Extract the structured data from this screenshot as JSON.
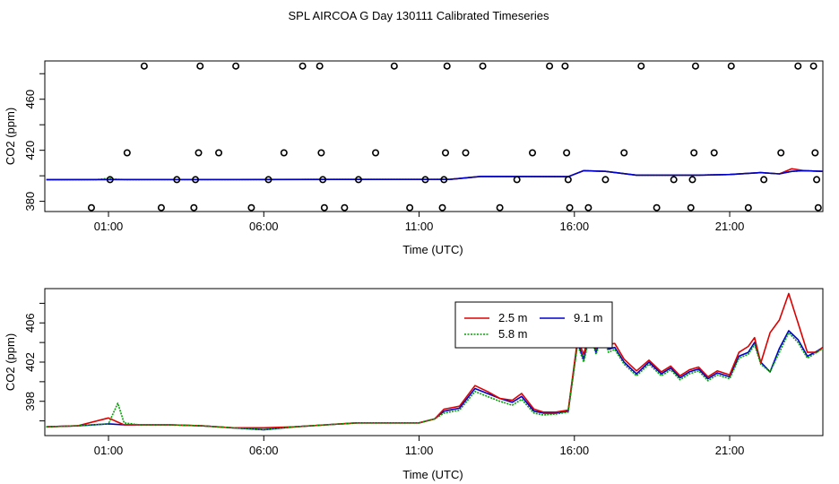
{
  "title": "SPL AIRCOA G  Day 130111  Calibrated Timeseries",
  "colors": {
    "s25": "#dd0000",
    "s58": "#00a000",
    "s91": "#0000cc",
    "pts": "#000000"
  },
  "chart_data": [
    {
      "type": "line+scatter",
      "ylabel": "CO2 (ppm)",
      "xlabel": "Time (UTC)",
      "xlim": [
        -1.05,
        24.0
      ],
      "ylim": [
        372,
        490
      ],
      "xticks": [
        1,
        6,
        11,
        16,
        21
      ],
      "xtick_labels": [
        "01:00",
        "06:00",
        "11:00",
        "16:00",
        "21:00"
      ],
      "yticks": [
        380,
        420,
        460
      ],
      "yticks_minor": [
        400,
        440,
        480
      ],
      "ytick_labels": [
        "380",
        "420",
        "460"
      ],
      "scatter_points": [
        [
          0.45,
          375
        ],
        [
          1.05,
          397
        ],
        [
          1.6,
          418
        ],
        [
          2.15,
          486
        ],
        [
          2.7,
          375
        ],
        [
          3.2,
          397
        ],
        [
          3.75,
          375
        ],
        [
          3.8,
          397
        ],
        [
          3.9,
          418
        ],
        [
          3.95,
          486
        ],
        [
          4.55,
          418
        ],
        [
          5.1,
          486
        ],
        [
          5.6,
          375
        ],
        [
          6.15,
          397
        ],
        [
          6.65,
          418
        ],
        [
          7.25,
          486
        ],
        [
          7.8,
          486
        ],
        [
          7.85,
          418
        ],
        [
          7.9,
          397
        ],
        [
          7.95,
          375
        ],
        [
          8.6,
          375
        ],
        [
          9.05,
          397
        ],
        [
          9.6,
          418
        ],
        [
          10.2,
          486
        ],
        [
          10.7,
          375
        ],
        [
          11.2,
          397
        ],
        [
          11.75,
          375
        ],
        [
          11.8,
          397
        ],
        [
          11.85,
          418
        ],
        [
          11.9,
          486
        ],
        [
          12.5,
          418
        ],
        [
          13.05,
          486
        ],
        [
          13.6,
          375
        ],
        [
          14.15,
          397
        ],
        [
          14.65,
          418
        ],
        [
          15.2,
          486
        ],
        [
          15.7,
          486
        ],
        [
          15.75,
          418
        ],
        [
          15.8,
          397
        ],
        [
          15.85,
          375
        ],
        [
          16.45,
          375
        ],
        [
          17.0,
          397
        ],
        [
          17.6,
          418
        ],
        [
          18.15,
          486
        ],
        [
          18.65,
          375
        ],
        [
          19.2,
          397
        ],
        [
          19.75,
          375
        ],
        [
          19.8,
          397
        ],
        [
          19.85,
          418
        ],
        [
          19.9,
          486
        ],
        [
          20.5,
          418
        ],
        [
          21.05,
          486
        ],
        [
          21.6,
          375
        ],
        [
          22.1,
          397
        ],
        [
          22.65,
          418
        ],
        [
          23.2,
          486
        ],
        [
          23.7,
          486
        ],
        [
          23.75,
          418
        ],
        [
          23.8,
          397
        ],
        [
          23.85,
          375
        ]
      ],
      "series": [
        {
          "name": "2.5 m",
          "x": [
            -1.0,
            12.0,
            13.0,
            15.8,
            16.3,
            17.0,
            18.0,
            19.0,
            20.0,
            21.0,
            22.0,
            22.6,
            23.0,
            23.4,
            24.0
          ],
          "values": [
            397.0,
            397.2,
            399.5,
            399.3,
            404.0,
            403.5,
            400.5,
            400.5,
            400.5,
            401.0,
            402.5,
            401.5,
            405.5,
            404.0,
            403.5
          ]
        },
        {
          "name": "5.8 m",
          "x": [
            -1.0,
            0.6,
            1.0,
            1.3,
            1.6,
            12.0,
            13.0,
            15.8,
            16.3,
            17.0,
            18.0,
            19.0,
            20.0,
            21.0,
            22.0,
            22.6,
            23.0,
            23.4,
            24.0
          ],
          "values": [
            397.0,
            397.0,
            398.0,
            397.2,
            397.0,
            397.2,
            399.5,
            399.3,
            404.0,
            403.5,
            400.5,
            400.5,
            400.5,
            401.0,
            402.5,
            401.5,
            403.5,
            404.0,
            403.5
          ]
        },
        {
          "name": "9.1 m",
          "x": [
            -1.0,
            12.0,
            13.0,
            15.8,
            16.3,
            17.0,
            18.0,
            19.0,
            20.0,
            21.0,
            22.0,
            22.6,
            23.0,
            23.4,
            24.0
          ],
          "values": [
            397.0,
            397.2,
            399.5,
            399.3,
            404.0,
            403.5,
            400.5,
            400.5,
            400.5,
            401.0,
            402.5,
            401.5,
            403.5,
            404.0,
            403.5
          ]
        }
      ]
    },
    {
      "type": "line",
      "ylabel": "CO2 (ppm)",
      "xlabel": "Time (UTC)",
      "xlim": [
        -1.05,
        24.0
      ],
      "ylim": [
        394.5,
        409.5
      ],
      "xticks": [
        1,
        6,
        11,
        16,
        21
      ],
      "xtick_labels": [
        "01:00",
        "06:00",
        "11:00",
        "16:00",
        "21:00"
      ],
      "yticks": [
        398,
        402,
        406
      ],
      "yticks_minor": [
        396,
        400,
        404,
        408
      ],
      "ytick_labels": [
        "398",
        "402",
        "406"
      ],
      "legend": {
        "position": "top-right-center",
        "entries": [
          "2.5 m",
          "9.1 m",
          "5.8 m"
        ]
      },
      "series": [
        {
          "name": "9.1 m",
          "x": [
            -1.0,
            0.0,
            1.0,
            1.5,
            2.0,
            3.0,
            4.0,
            5.0,
            6.0,
            7.0,
            8.0,
            9.0,
            10.0,
            11.0,
            11.5,
            11.8,
            12.3,
            12.8,
            13.2,
            13.6,
            14.0,
            14.3,
            14.7,
            15.0,
            15.4,
            15.8,
            16.1,
            16.3,
            16.5,
            16.7,
            16.9,
            17.1,
            17.3,
            17.6,
            18.0,
            18.4,
            18.8,
            19.1,
            19.4,
            19.7,
            20.0,
            20.3,
            20.6,
            21.0,
            21.3,
            21.6,
            21.8,
            22.0,
            22.3,
            22.6,
            22.9,
            23.2,
            23.5,
            23.8,
            24.0
          ],
          "values": [
            395.4,
            395.5,
            395.7,
            395.6,
            395.6,
            395.6,
            395.5,
            395.3,
            395.1,
            395.4,
            395.6,
            395.8,
            395.8,
            395.8,
            396.2,
            397.0,
            397.3,
            399.3,
            398.8,
            398.3,
            397.9,
            398.5,
            397.0,
            396.8,
            396.8,
            397.0,
            404.0,
            402.3,
            405.0,
            403.0,
            405.0,
            403.3,
            403.5,
            402.0,
            400.8,
            402.0,
            400.8,
            401.4,
            400.4,
            401.0,
            401.3,
            400.3,
            400.9,
            400.5,
            402.6,
            403.0,
            404.0,
            402.0,
            401.0,
            403.4,
            405.2,
            404.3,
            402.6,
            403.1,
            403.5
          ]
        },
        {
          "name": "2.5 m",
          "x": [
            -1.0,
            0.0,
            1.0,
            1.5,
            2.0,
            3.0,
            4.0,
            5.0,
            6.0,
            7.0,
            8.0,
            9.0,
            10.0,
            11.0,
            11.5,
            11.8,
            12.3,
            12.8,
            13.2,
            13.6,
            14.0,
            14.3,
            14.7,
            15.0,
            15.4,
            15.8,
            16.1,
            16.3,
            16.5,
            16.7,
            16.9,
            17.1,
            17.3,
            17.6,
            18.0,
            18.4,
            18.8,
            19.1,
            19.4,
            19.7,
            20.0,
            20.3,
            20.6,
            21.0,
            21.3,
            21.6,
            21.8,
            22.0,
            22.3,
            22.6,
            22.9,
            23.2,
            23.5,
            23.8,
            24.0
          ],
          "values": [
            395.4,
            395.5,
            396.3,
            395.6,
            395.6,
            395.6,
            395.5,
            395.3,
            395.3,
            395.4,
            395.6,
            395.8,
            395.8,
            395.8,
            396.2,
            397.2,
            397.5,
            399.6,
            399.0,
            398.3,
            398.1,
            398.8,
            397.2,
            396.9,
            396.9,
            397.1,
            404.3,
            402.8,
            405.2,
            403.4,
            405.4,
            403.8,
            403.9,
            402.3,
            401.1,
            402.2,
            401.0,
            401.6,
            400.6,
            401.2,
            401.5,
            400.5,
            401.1,
            400.7,
            403.0,
            403.6,
            404.5,
            401.9,
            405.0,
            406.3,
            409.0,
            406.0,
            403.0,
            403.0,
            403.5
          ]
        },
        {
          "name": "5.8 m",
          "x": [
            -1.0,
            0.0,
            1.0,
            1.3,
            1.5,
            2.0,
            3.0,
            4.0,
            5.0,
            6.0,
            7.0,
            8.0,
            9.0,
            10.0,
            11.0,
            11.5,
            11.8,
            12.3,
            12.8,
            13.2,
            13.6,
            14.0,
            14.3,
            14.7,
            15.0,
            15.4,
            15.8,
            16.1,
            16.3,
            16.5,
            16.7,
            16.9,
            17.1,
            17.3,
            17.6,
            18.0,
            18.4,
            18.8,
            19.1,
            19.4,
            19.7,
            20.0,
            20.3,
            20.6,
            21.0,
            21.3,
            21.6,
            21.8,
            22.0,
            22.3,
            22.6,
            22.9,
            23.2,
            23.5,
            23.8,
            24.0
          ],
          "values": [
            395.4,
            395.5,
            395.7,
            397.8,
            395.8,
            395.6,
            395.6,
            395.5,
            395.3,
            395.1,
            395.4,
            395.6,
            395.8,
            395.8,
            395.8,
            396.2,
            396.8,
            397.1,
            399.0,
            398.5,
            398.0,
            397.6,
            398.2,
            396.8,
            396.6,
            396.7,
            396.9,
            403.8,
            402.0,
            404.8,
            402.8,
            404.8,
            403.0,
            403.3,
            401.8,
            400.6,
            401.8,
            400.6,
            401.2,
            400.2,
            400.8,
            401.1,
            400.1,
            400.7,
            400.3,
            402.4,
            402.8,
            403.8,
            401.8,
            401.0,
            403.0,
            405.0,
            404.0,
            402.4,
            403.0,
            403.4
          ]
        }
      ]
    }
  ]
}
